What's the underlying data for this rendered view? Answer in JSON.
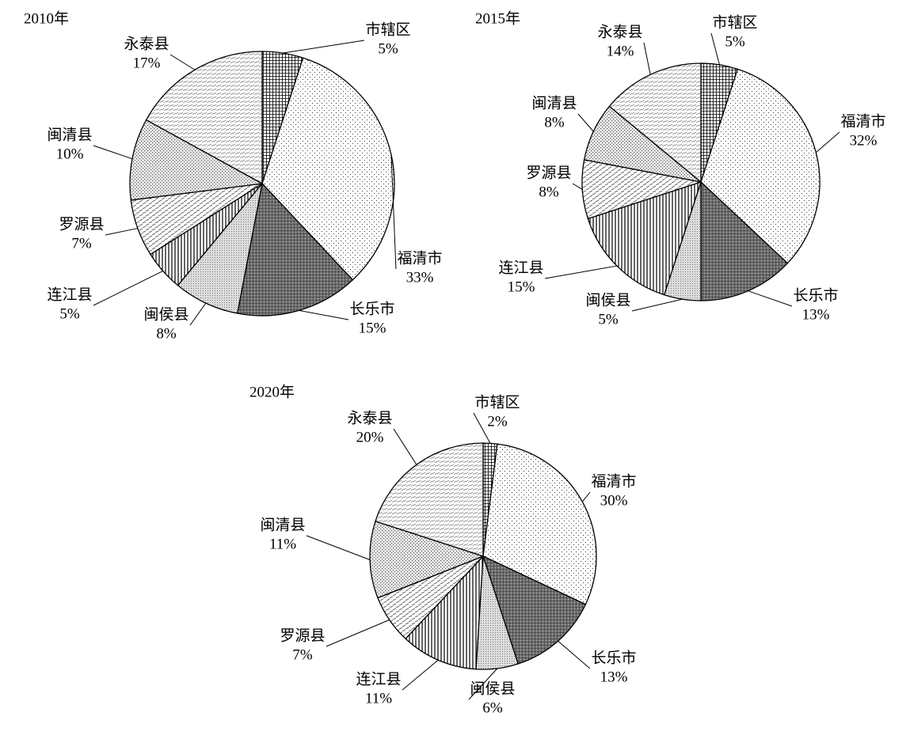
{
  "chart_data": [
    {
      "type": "pie",
      "title": "2010年",
      "categories": [
        "市辖区",
        "福清市",
        "长乐市",
        "闽侯县",
        "连江县",
        "罗源县",
        "闽清县",
        "永泰县"
      ],
      "values": [
        5,
        33,
        15,
        8,
        5,
        7,
        10,
        17
      ],
      "value_labels": [
        "5%",
        "33%",
        "15%",
        "8%",
        "5%",
        "7%",
        "10%",
        "17%"
      ]
    },
    {
      "type": "pie",
      "title": "2015年",
      "categories": [
        "市辖区",
        "福清市",
        "长乐市",
        "闽侯县",
        "连江县",
        "罗源县",
        "闽清县",
        "永泰县"
      ],
      "values": [
        5,
        32,
        13,
        5,
        15,
        8,
        8,
        14
      ],
      "value_labels": [
        "5%",
        "32%",
        "13%",
        "5%",
        "15%",
        "8%",
        "8%",
        "14%"
      ]
    },
    {
      "type": "pie",
      "title": "2020年",
      "categories": [
        "市辖区",
        "福清市",
        "长乐市",
        "闽侯县",
        "连江县",
        "罗源县",
        "闽清县",
        "永泰县"
      ],
      "values": [
        2,
        30,
        13,
        6,
        11,
        7,
        11,
        20
      ],
      "value_labels": [
        "2%",
        "30%",
        "13%",
        "6%",
        "11%",
        "7%",
        "11%",
        "20%"
      ]
    }
  ]
}
